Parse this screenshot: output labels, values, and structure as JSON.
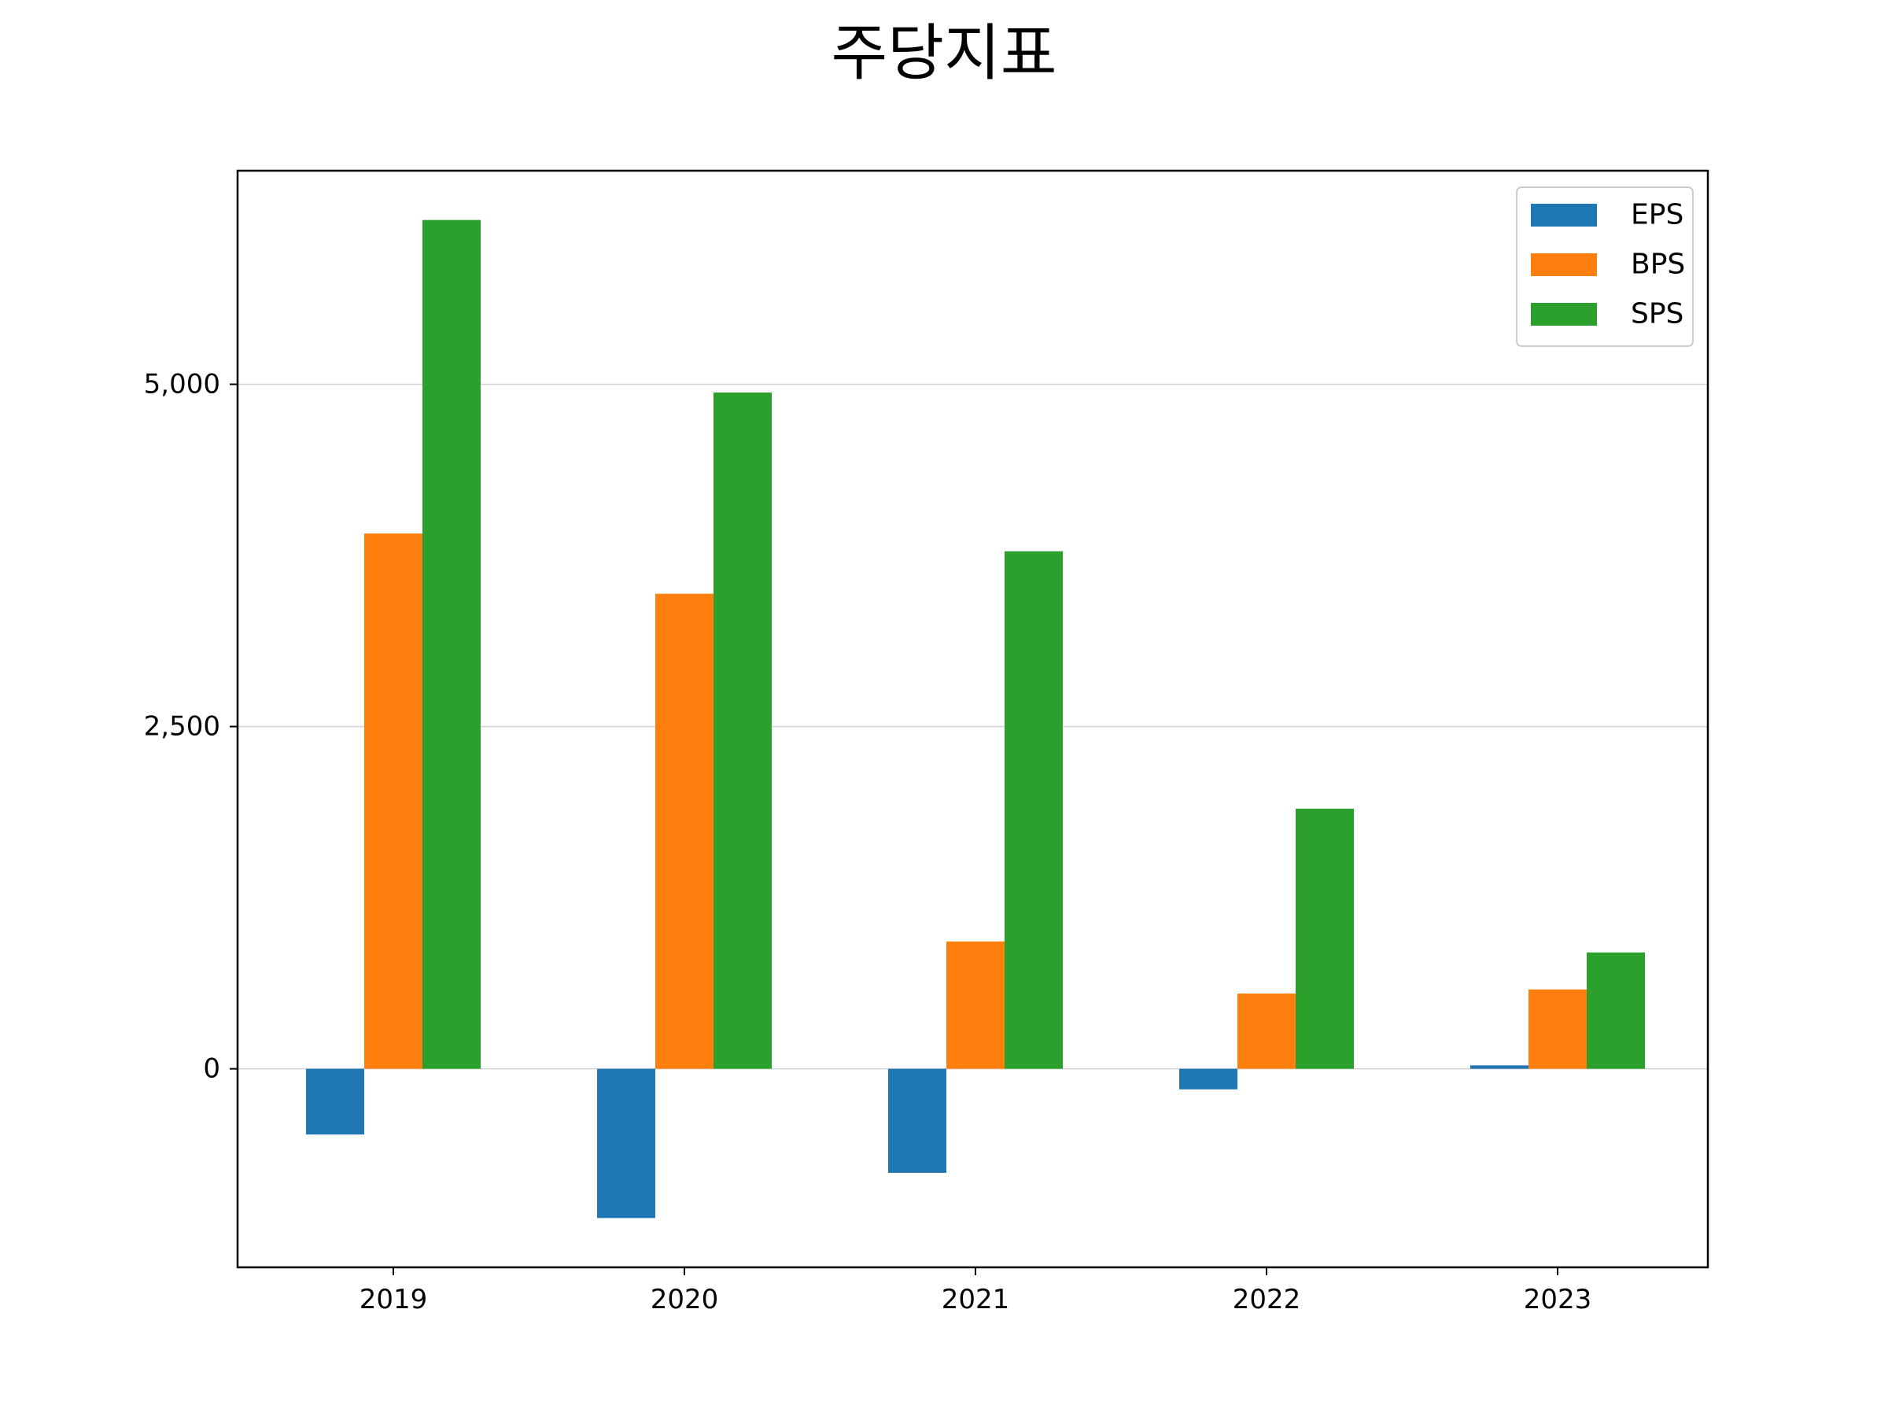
{
  "chart_data": {
    "type": "bar",
    "title": "주당지표",
    "xlabel": "",
    "ylabel": "",
    "categories": [
      "2019",
      "2020",
      "2021",
      "2022",
      "2023"
    ],
    "series": [
      {
        "name": "EPS",
        "color": "#1f77b4",
        "values": [
          -480,
          -1090,
          -760,
          -150,
          25
        ]
      },
      {
        "name": "BPS",
        "color": "#ff7f0e",
        "values": [
          3910,
          3470,
          930,
          550,
          580
        ]
      },
      {
        "name": "SPS",
        "color": "#2ca02c",
        "values": [
          6200,
          4940,
          3780,
          1900,
          850
        ]
      }
    ],
    "ylim": [
      -1450,
      6560
    ],
    "yticks": [
      0,
      2500,
      5000
    ],
    "ytick_labels": [
      "0",
      "2,500",
      "5,000"
    ],
    "grid": "y",
    "legend_position": "top-right"
  }
}
